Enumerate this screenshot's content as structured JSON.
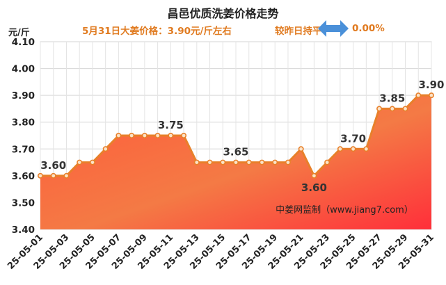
{
  "title": "昌邑优质洗姜价格走势",
  "subtitle": "5月31日大姜价格：3.90元/斤左右",
  "compare_text": "较昨日持平",
  "change_text": "0.00%",
  "unit_label": "元/斤",
  "watermark": "中姜网监制（www.jiang7.com）",
  "icons": {
    "compare": "left-right-arrow-icon"
  },
  "colors": {
    "accent": "#e07a1f",
    "line": "#e8802a",
    "fill_top": "#ff3b3b",
    "fill_bottom": "#f08a4a",
    "arrow": "#4a90d9"
  },
  "chart_data": {
    "type": "area",
    "title": "昌邑优质洗姜价格走势",
    "ylabel": "元/斤",
    "xlabel": "",
    "ylim": [
      3.4,
      4.1
    ],
    "yticks": [
      "3.40",
      "3.50",
      "3.60",
      "3.70",
      "3.80",
      "3.90",
      "4.00",
      "4.10"
    ],
    "grid": true,
    "x": [
      "25-05-01",
      "25-05-02",
      "25-05-03",
      "25-05-04",
      "25-05-05",
      "25-05-06",
      "25-05-07",
      "25-05-08",
      "25-05-09",
      "25-05-10",
      "25-05-11",
      "25-05-12",
      "25-05-13",
      "25-05-14",
      "25-05-15",
      "25-05-16",
      "25-05-17",
      "25-05-18",
      "25-05-19",
      "25-05-20",
      "25-05-21",
      "25-05-22",
      "25-05-23",
      "25-05-24",
      "25-05-25",
      "25-05-26",
      "25-05-27",
      "25-05-28",
      "25-05-29",
      "25-05-30",
      "25-05-31"
    ],
    "xtick_labels": [
      "25-05-01",
      "25-05-03",
      "25-05-05",
      "25-05-07",
      "25-05-09",
      "25-05-11",
      "25-05-13",
      "25-05-15",
      "25-05-17",
      "25-05-19",
      "25-05-21",
      "25-05-23",
      "25-05-25",
      "25-05-27",
      "25-05-29",
      "25-05-31"
    ],
    "values": [
      3.6,
      3.6,
      3.6,
      3.65,
      3.65,
      3.7,
      3.75,
      3.75,
      3.75,
      3.75,
      3.75,
      3.75,
      3.65,
      3.65,
      3.65,
      3.65,
      3.65,
      3.65,
      3.65,
      3.65,
      3.7,
      3.6,
      3.65,
      3.7,
      3.7,
      3.7,
      3.85,
      3.85,
      3.85,
      3.9,
      3.9
    ],
    "annotations": [
      {
        "index": 1,
        "text": "3.60",
        "pos": "above"
      },
      {
        "index": 10,
        "text": "3.75",
        "pos": "above"
      },
      {
        "index": 15,
        "text": "3.65",
        "pos": "above"
      },
      {
        "index": 21,
        "text": "3.60",
        "pos": "below"
      },
      {
        "index": 24,
        "text": "3.70",
        "pos": "above"
      },
      {
        "index": 27,
        "text": "3.85",
        "pos": "above"
      },
      {
        "index": 30,
        "text": "3.90",
        "pos": "above"
      }
    ]
  }
}
